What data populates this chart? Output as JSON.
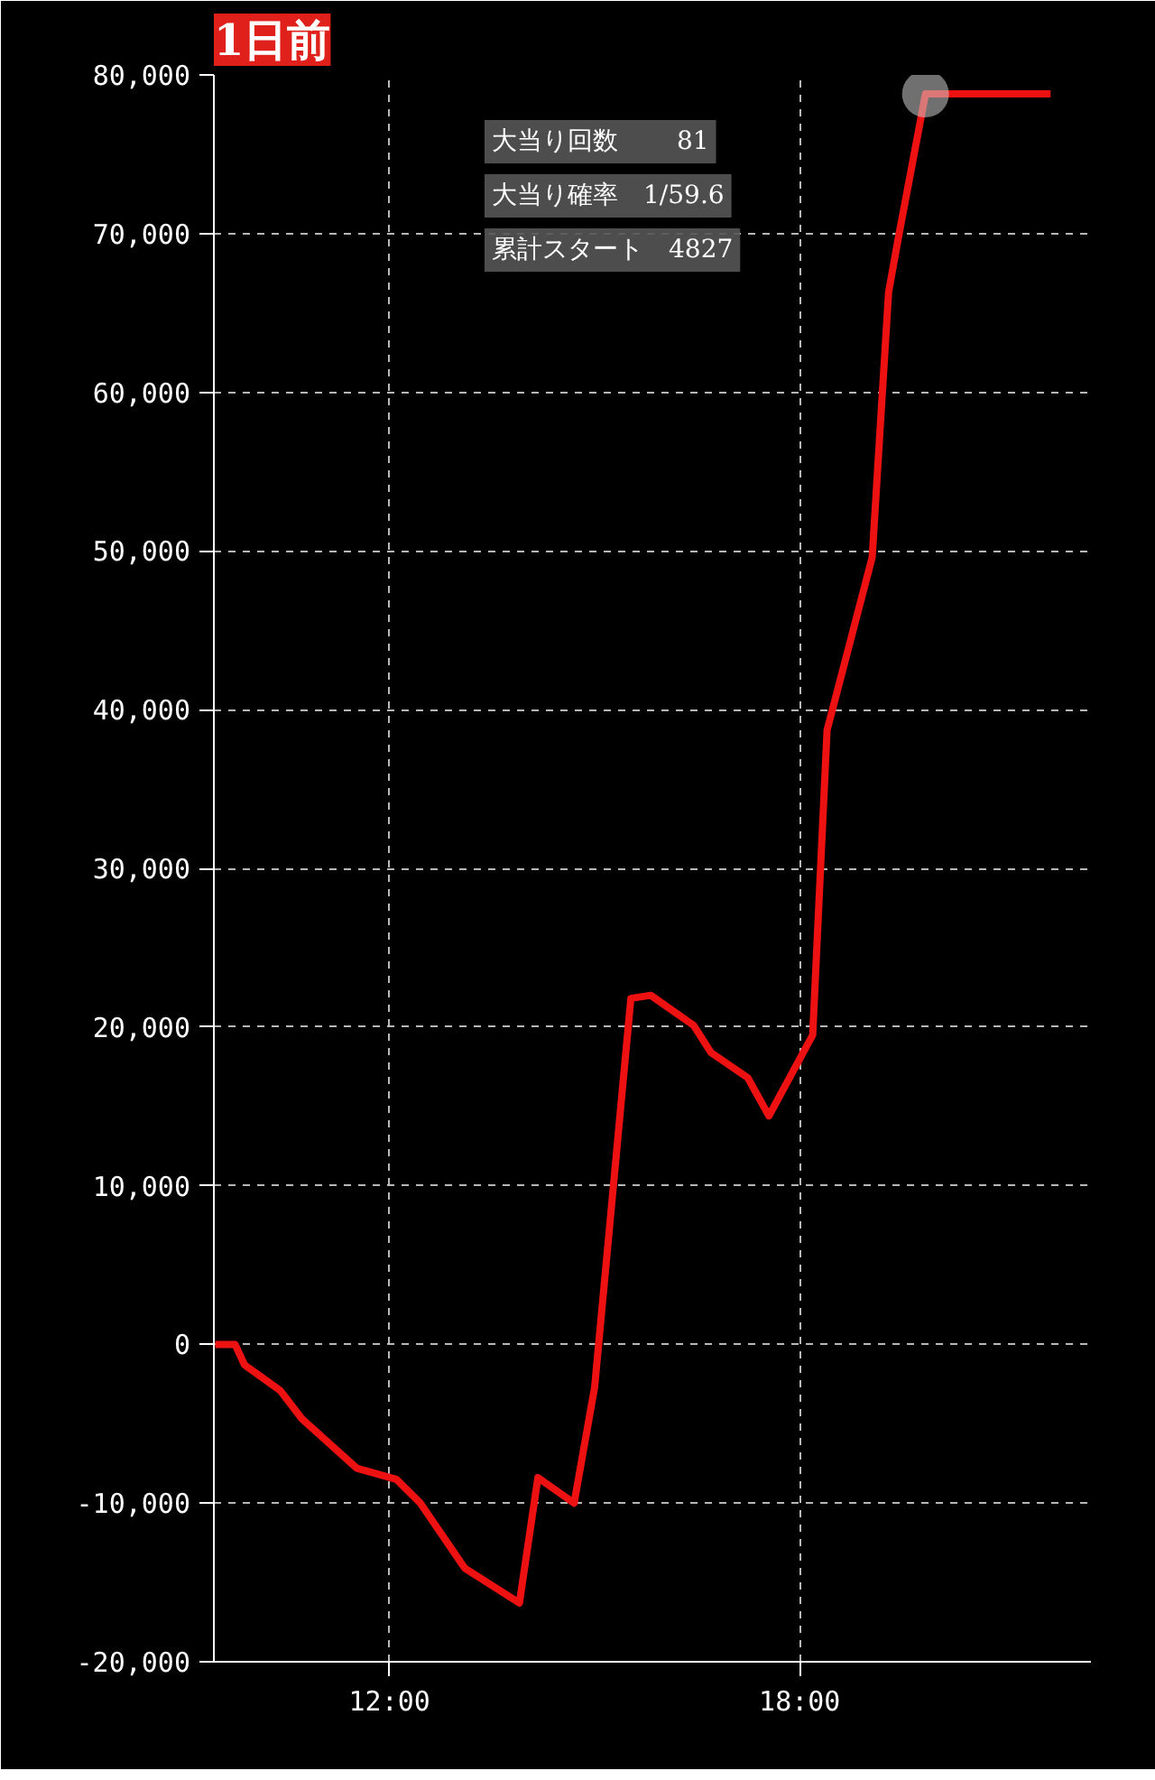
{
  "chart_data": {
    "type": "line",
    "title": "1日前",
    "x": [
      9.45,
      9.74,
      9.88,
      10.4,
      10.72,
      11.52,
      12.1,
      12.45,
      13.1,
      13.9,
      14.17,
      14.7,
      15.0,
      15.53,
      15.82,
      16.45,
      16.7,
      17.24,
      17.55,
      18.19,
      18.4,
      19.06,
      19.3,
      19.45,
      19.84,
      21.67
    ],
    "series": [
      {
        "color": "#ee1111",
        "values": [
          0,
          0,
          -1300,
          -2900,
          -4700,
          -7800,
          -8500,
          -10000,
          -14100,
          -16300,
          -8400,
          -10000,
          -2700,
          21800,
          22000,
          20100,
          18400,
          16800,
          14400,
          19500,
          38700,
          49600,
          66300,
          69900,
          78800,
          78800
        ]
      },
      {
        "type": "scatter",
        "marker": "circle",
        "color": "#cccccc",
        "x": [
          19.84
        ],
        "values": [
          78800
        ]
      }
    ],
    "xlim": [
      9.43,
      22.26
    ],
    "ylim": [
      -20000,
      80000
    ],
    "xticks": [
      {
        "value": 12,
        "label": "12:00"
      },
      {
        "value": 18,
        "label": "18:00"
      }
    ],
    "yticks": [
      {
        "value": -20000,
        "label": "-20,000"
      },
      {
        "value": -10000,
        "label": "-10,000"
      },
      0,
      {
        "value": 10000,
        "label": "10,000"
      },
      {
        "value": 20000,
        "label": "20,000"
      },
      {
        "value": 30000,
        "label": "30,000"
      },
      {
        "value": 40000,
        "label": "40,000"
      },
      {
        "value": 50000,
        "label": "50,000"
      },
      {
        "value": 60000,
        "label": "60,000"
      },
      {
        "value": 70000,
        "label": "70,000"
      },
      {
        "value": 80000,
        "label": "80,000"
      }
    ],
    "grid": true,
    "line_style": "solid",
    "marker": "none",
    "annotations": [
      "大当り回数　　 81",
      "大当り確率　1/59.6",
      "累計スタート　4827"
    ]
  }
}
